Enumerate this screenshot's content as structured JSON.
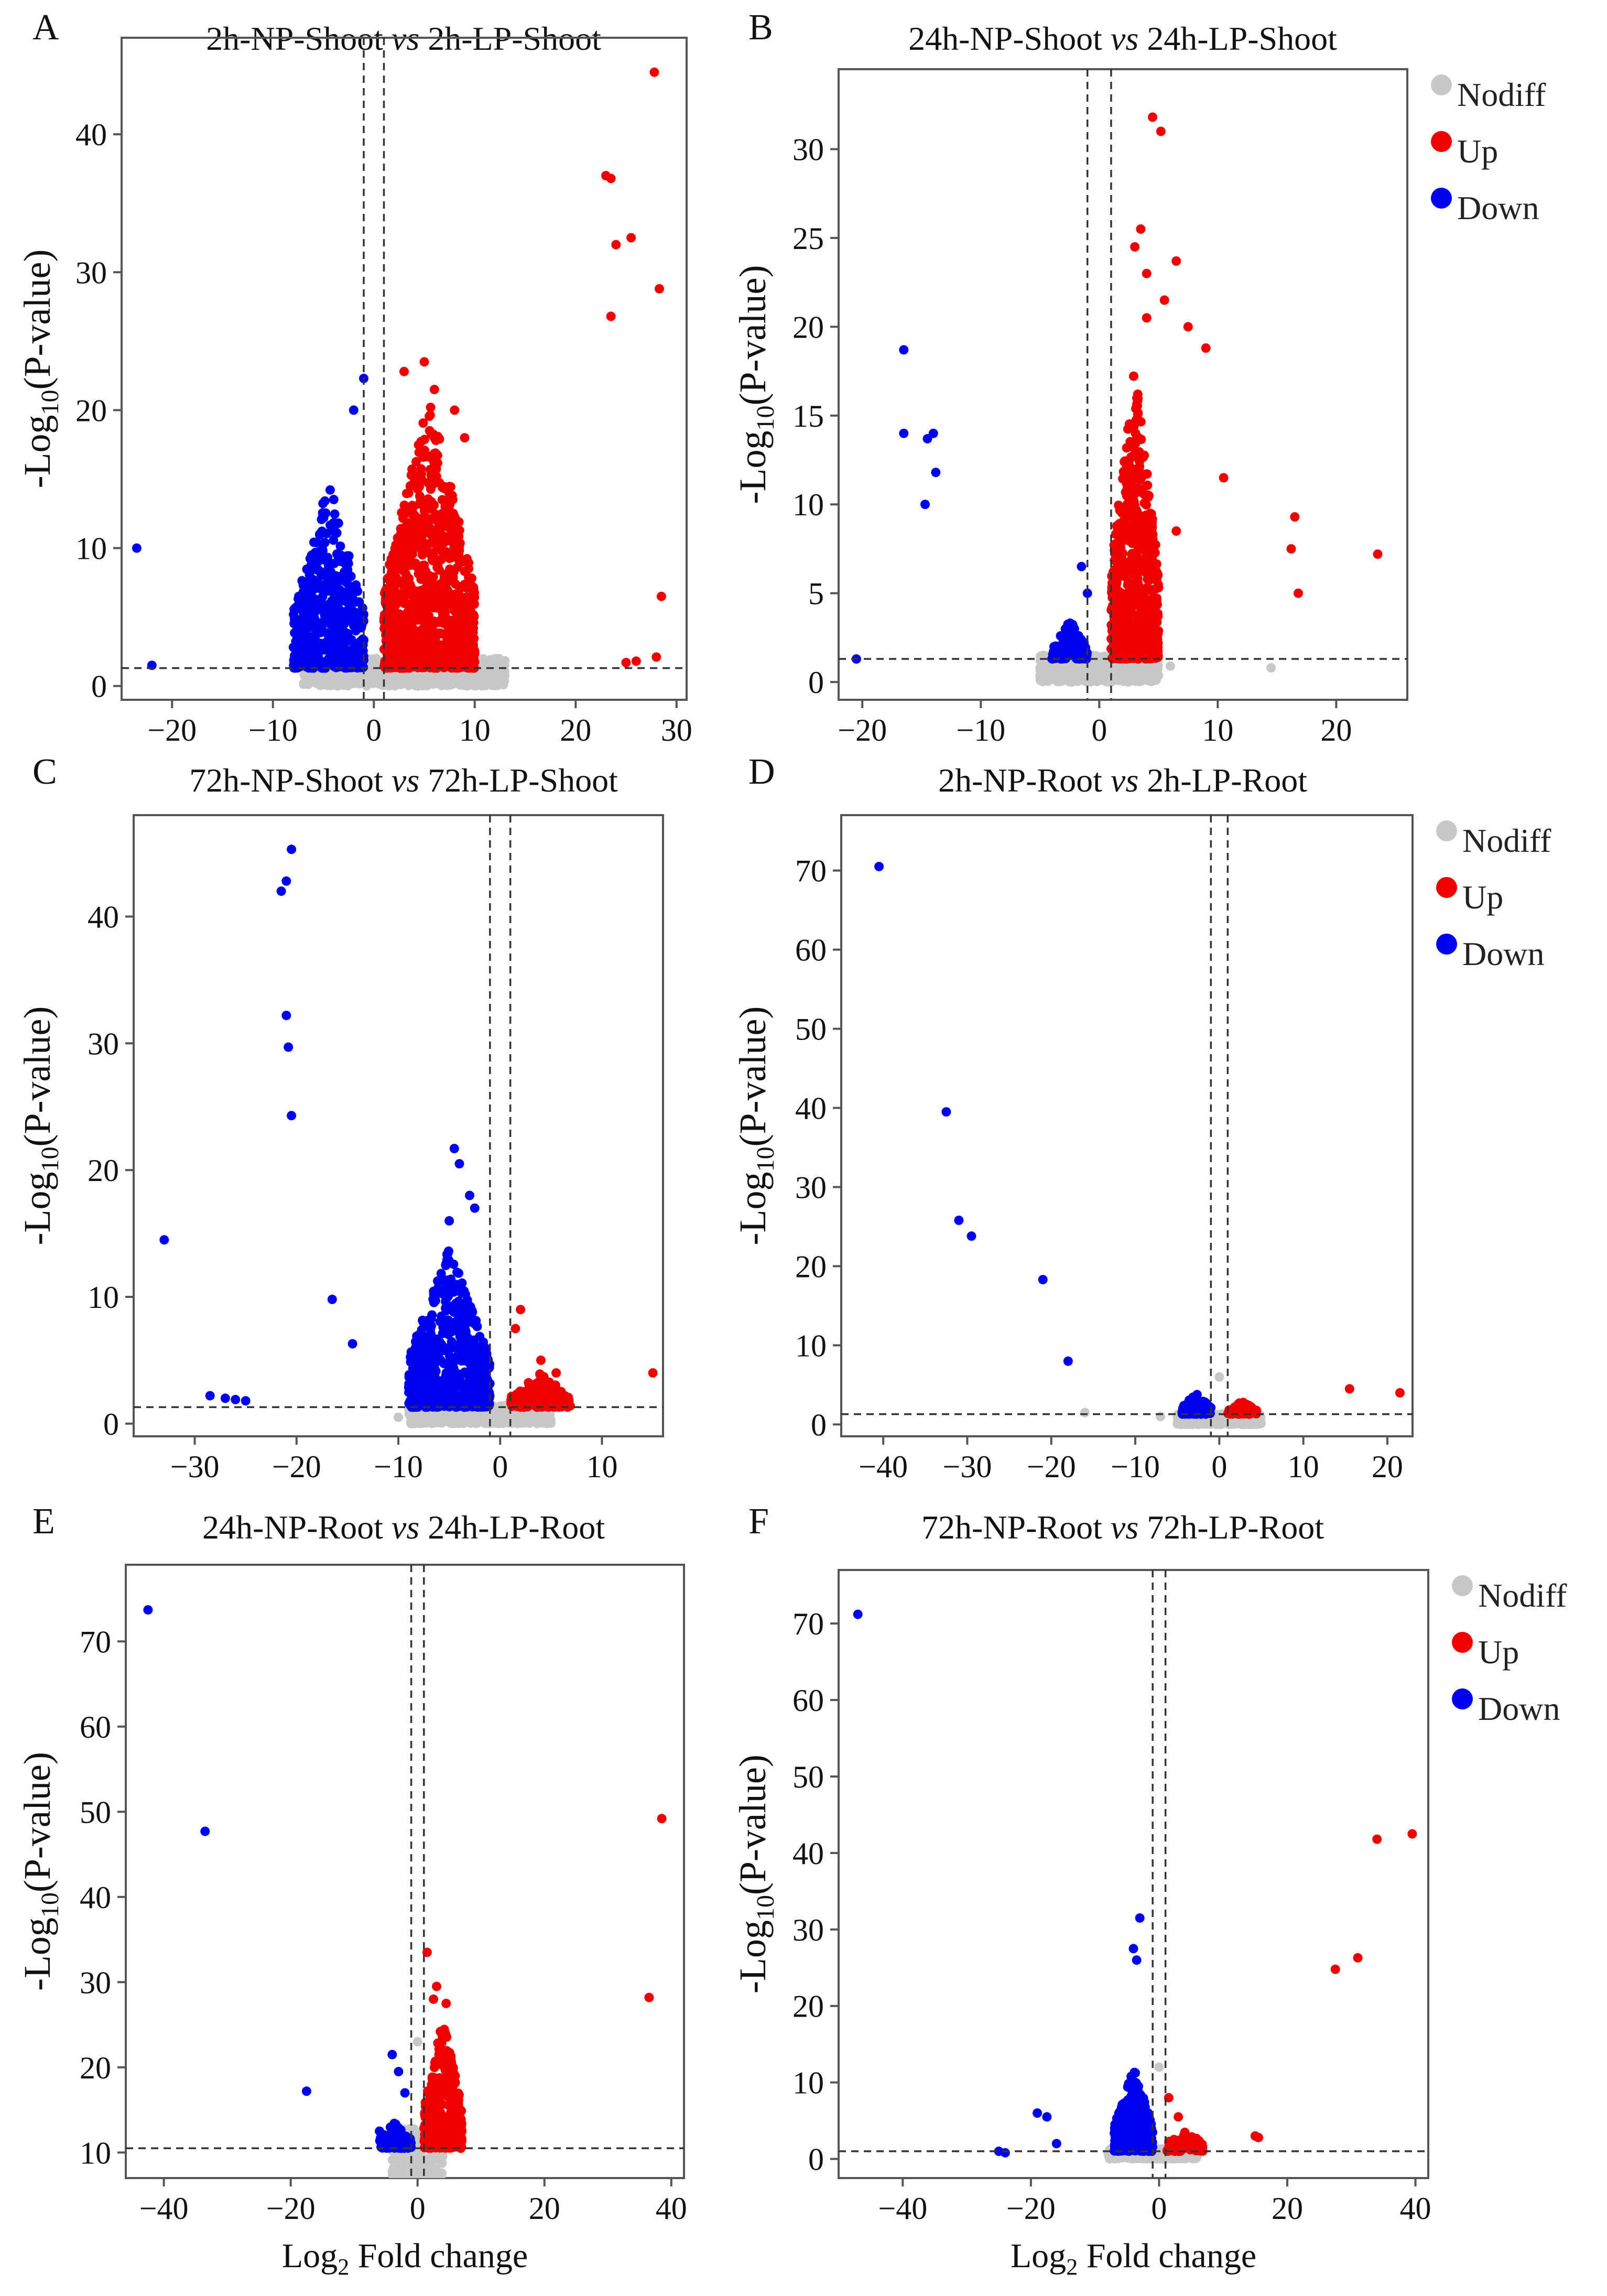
{
  "figure": {
    "ylabel_prefix": "-Log",
    "ylabel_sub": "10",
    "ylabel_suffix": "(P-value)",
    "xlabel_prefix": "Log",
    "xlabel_sub": "2",
    "xlabel_suffix": " Fold change"
  },
  "legend_items": [
    {
      "label": "Nodiff",
      "color": "#c8c8c8"
    },
    {
      "label": "Up",
      "color": "#f00000"
    },
    {
      "label": "Down",
      "color": "#0000f0"
    }
  ],
  "chart_data": [
    {
      "type": "scatter",
      "letter": "A",
      "title_left": "2h-NP-Shoot ",
      "title_vs": "vs",
      "title_right": " 2h-LP-Shoot",
      "xlim": [
        -25,
        31
      ],
      "ylim": [
        -1,
        47
      ],
      "xticks": [
        -20,
        -10,
        0,
        10,
        20,
        30
      ],
      "yticks": [
        0,
        10,
        20,
        30,
        40
      ],
      "fc_threshold": [
        -1,
        1
      ],
      "p_threshold": 1.3,
      "legend": false,
      "xlabel_shown": false,
      "clouds": [
        {
          "category": "Nodiff",
          "x_range": [
            -7,
            13
          ],
          "y_max": 2,
          "n": 900
        },
        {
          "category": "Down",
          "x_range": [
            -8,
            -1
          ],
          "y_max": 15,
          "n": 500
        },
        {
          "category": "Up",
          "x_range": [
            1,
            10
          ],
          "y_max": 21,
          "n": 1000
        }
      ],
      "points": [
        {
          "x": -23.5,
          "y": 10,
          "category": "Down"
        },
        {
          "x": -22,
          "y": 1.5,
          "category": "Down"
        },
        {
          "x": -1,
          "y": 22.3,
          "category": "Down"
        },
        {
          "x": -2,
          "y": 20,
          "category": "Down"
        },
        {
          "x": 5,
          "y": 23.5,
          "category": "Up"
        },
        {
          "x": 3,
          "y": 22.8,
          "category": "Up"
        },
        {
          "x": 6,
          "y": 21.5,
          "category": "Up"
        },
        {
          "x": 8,
          "y": 20,
          "category": "Up"
        },
        {
          "x": 9,
          "y": 18,
          "category": "Up"
        },
        {
          "x": 27.8,
          "y": 44.5,
          "category": "Up"
        },
        {
          "x": 23,
          "y": 37,
          "category": "Up"
        },
        {
          "x": 23.5,
          "y": 36.8,
          "category": "Up"
        },
        {
          "x": 25.5,
          "y": 32.5,
          "category": "Up"
        },
        {
          "x": 24,
          "y": 32,
          "category": "Up"
        },
        {
          "x": 28.3,
          "y": 28.8,
          "category": "Up"
        },
        {
          "x": 23.5,
          "y": 26.8,
          "category": "Up"
        },
        {
          "x": 28.5,
          "y": 6.5,
          "category": "Up"
        },
        {
          "x": 25,
          "y": 1.7,
          "category": "Up"
        },
        {
          "x": 26,
          "y": 1.8,
          "category": "Up"
        },
        {
          "x": 28,
          "y": 2.1,
          "category": "Up"
        }
      ]
    },
    {
      "type": "scatter",
      "letter": "B",
      "title_left": "24h-NP-Shoot ",
      "title_vs": "vs",
      "title_right": " 24h-LP-Shoot",
      "xlim": [
        -22,
        26
      ],
      "ylim": [
        -1,
        34.5
      ],
      "xticks": [
        -20,
        -10,
        0,
        10,
        20
      ],
      "yticks": [
        0,
        5,
        10,
        15,
        20,
        25,
        30
      ],
      "fc_threshold": [
        -1,
        1
      ],
      "p_threshold": 1.3,
      "legend": true,
      "xlabel_shown": false,
      "clouds": [
        {
          "category": "Nodiff",
          "x_range": [
            -5,
            5
          ],
          "y_max": 1.5,
          "n": 800
        },
        {
          "category": "Down",
          "x_range": [
            -4,
            -1
          ],
          "y_max": 3.5,
          "n": 120
        },
        {
          "category": "Up",
          "x_range": [
            1,
            5
          ],
          "y_max": 18,
          "n": 700
        }
      ],
      "points": [
        {
          "x": -20.5,
          "y": 1.3,
          "category": "Down"
        },
        {
          "x": -16.5,
          "y": 18.7,
          "category": "Down"
        },
        {
          "x": -16.5,
          "y": 14,
          "category": "Down"
        },
        {
          "x": -14.5,
          "y": 13.7,
          "category": "Down"
        },
        {
          "x": -14,
          "y": 14,
          "category": "Down"
        },
        {
          "x": -13.8,
          "y": 11.8,
          "category": "Down"
        },
        {
          "x": -14.7,
          "y": 10,
          "category": "Down"
        },
        {
          "x": -1.5,
          "y": 6.5,
          "category": "Down"
        },
        {
          "x": -1,
          "y": 5,
          "category": "Down"
        },
        {
          "x": 4.5,
          "y": 31.8,
          "category": "Up"
        },
        {
          "x": 5.2,
          "y": 31,
          "category": "Up"
        },
        {
          "x": 3.5,
          "y": 25.5,
          "category": "Up"
        },
        {
          "x": 3,
          "y": 24.5,
          "category": "Up"
        },
        {
          "x": 4,
          "y": 23,
          "category": "Up"
        },
        {
          "x": 6.5,
          "y": 23.7,
          "category": "Up"
        },
        {
          "x": 5.5,
          "y": 21.5,
          "category": "Up"
        },
        {
          "x": 7.5,
          "y": 20,
          "category": "Up"
        },
        {
          "x": 9,
          "y": 18.8,
          "category": "Up"
        },
        {
          "x": 4,
          "y": 20.5,
          "category": "Up"
        },
        {
          "x": 10.5,
          "y": 11.5,
          "category": "Up"
        },
        {
          "x": 16.5,
          "y": 9.3,
          "category": "Up"
        },
        {
          "x": 16.2,
          "y": 7.5,
          "category": "Up"
        },
        {
          "x": 16.8,
          "y": 5,
          "category": "Up"
        },
        {
          "x": 23.5,
          "y": 7.2,
          "category": "Up"
        },
        {
          "x": 6.5,
          "y": 8.5,
          "category": "Up"
        },
        {
          "x": 14.5,
          "y": 0.8,
          "category": "Nodiff"
        },
        {
          "x": -5,
          "y": 0.8,
          "category": "Nodiff"
        },
        {
          "x": 6,
          "y": 0.9,
          "category": "Nodiff"
        }
      ]
    },
    {
      "type": "scatter",
      "letter": "C",
      "title_left": "72h-NP-Shoot ",
      "title_vs": "vs",
      "title_right": " 72h-LP-Shoot",
      "xlim": [
        -36,
        16
      ],
      "ylim": [
        -1,
        48
      ],
      "xticks": [
        -30,
        -20,
        -10,
        0,
        10
      ],
      "yticks": [
        0,
        10,
        20,
        30,
        40
      ],
      "fc_threshold": [
        -1,
        1
      ],
      "p_threshold": 1.3,
      "legend": false,
      "xlabel_shown": false,
      "clouds": [
        {
          "category": "Nodiff",
          "x_range": [
            -9,
            5
          ],
          "y_max": 1.5,
          "n": 800
        },
        {
          "category": "Down",
          "x_range": [
            -9,
            -1
          ],
          "y_max": 14,
          "n": 650
        },
        {
          "category": "Up",
          "x_range": [
            1,
            7
          ],
          "y_max": 4,
          "n": 120
        }
      ],
      "points": [
        {
          "x": -20.5,
          "y": 45.3,
          "category": "Down"
        },
        {
          "x": -21.5,
          "y": 42,
          "category": "Down"
        },
        {
          "x": -21,
          "y": 42.8,
          "category": "Down"
        },
        {
          "x": -21,
          "y": 32.2,
          "category": "Down"
        },
        {
          "x": -20.8,
          "y": 29.7,
          "category": "Down"
        },
        {
          "x": -20.5,
          "y": 24.3,
          "category": "Down"
        },
        {
          "x": -33,
          "y": 14.5,
          "category": "Down"
        },
        {
          "x": -16.5,
          "y": 9.8,
          "category": "Down"
        },
        {
          "x": -14.5,
          "y": 6.3,
          "category": "Down"
        },
        {
          "x": -28.5,
          "y": 2.2,
          "category": "Down"
        },
        {
          "x": -27,
          "y": 2,
          "category": "Down"
        },
        {
          "x": -26,
          "y": 1.9,
          "category": "Down"
        },
        {
          "x": -25,
          "y": 1.8,
          "category": "Down"
        },
        {
          "x": -4.5,
          "y": 21.7,
          "category": "Down"
        },
        {
          "x": -4,
          "y": 20.5,
          "category": "Down"
        },
        {
          "x": -3,
          "y": 18,
          "category": "Down"
        },
        {
          "x": -2.5,
          "y": 17,
          "category": "Down"
        },
        {
          "x": -5,
          "y": 16,
          "category": "Down"
        },
        {
          "x": 15,
          "y": 4,
          "category": "Up"
        },
        {
          "x": 1.5,
          "y": 7.5,
          "category": "Up"
        },
        {
          "x": 2,
          "y": 9,
          "category": "Up"
        },
        {
          "x": 5.5,
          "y": 4,
          "category": "Up"
        },
        {
          "x": 4,
          "y": 5,
          "category": "Up"
        },
        {
          "x": -10,
          "y": 0.5,
          "category": "Nodiff"
        }
      ]
    },
    {
      "type": "scatter",
      "letter": "D",
      "title_left": "2h-NP-Root ",
      "title_vs": "vs",
      "title_right": " 2h-LP-Root",
      "xlim": [
        -45,
        23
      ],
      "ylim": [
        -1.5,
        77
      ],
      "xticks": [
        -40,
        -30,
        -20,
        -10,
        0,
        10,
        20
      ],
      "yticks": [
        0,
        10,
        20,
        30,
        40,
        50,
        60,
        70
      ],
      "fc_threshold": [
        -1,
        1
      ],
      "p_threshold": 1.3,
      "legend": true,
      "xlabel_shown": false,
      "clouds": [
        {
          "category": "Nodiff",
          "x_range": [
            -5,
            5
          ],
          "y_max": 1.3,
          "n": 500
        },
        {
          "category": "Down",
          "x_range": [
            -4.5,
            -1
          ],
          "y_max": 4,
          "n": 90
        },
        {
          "category": "Up",
          "x_range": [
            1,
            4.5
          ],
          "y_max": 3,
          "n": 70
        }
      ],
      "points": [
        {
          "x": -40.5,
          "y": 70.5,
          "category": "Down"
        },
        {
          "x": -32.5,
          "y": 39.5,
          "category": "Down"
        },
        {
          "x": -31,
          "y": 25.8,
          "category": "Down"
        },
        {
          "x": -29.5,
          "y": 23.8,
          "category": "Down"
        },
        {
          "x": -21,
          "y": 18.3,
          "category": "Down"
        },
        {
          "x": -18,
          "y": 8,
          "category": "Down"
        },
        {
          "x": 15.5,
          "y": 4.5,
          "category": "Up"
        },
        {
          "x": 21.5,
          "y": 4,
          "category": "Up"
        },
        {
          "x": -16,
          "y": 1.5,
          "category": "Nodiff"
        },
        {
          "x": 0,
          "y": 6,
          "category": "Nodiff"
        },
        {
          "x": -7,
          "y": 1,
          "category": "Nodiff"
        }
      ]
    },
    {
      "type": "scatter",
      "letter": "E",
      "title_left": "24h-NP-Root ",
      "title_vs": "vs",
      "title_right": " 24h-LP-Root",
      "xlim": [
        -46,
        42
      ],
      "ylim": [
        7,
        79
      ],
      "xticks": [
        -40,
        -20,
        0,
        20,
        40
      ],
      "yticks": [
        10,
        20,
        30,
        40,
        50,
        60,
        70
      ],
      "fc_threshold": [
        -1,
        1
      ],
      "p_threshold": 10.5,
      "legend": false,
      "xlabel_shown": true,
      "clouds": [
        {
          "category": "Nodiff",
          "x_range": [
            -4,
            4
          ],
          "y_max": 13,
          "n": 400
        },
        {
          "category": "Down",
          "x_range": [
            -6,
            -1
          ],
          "y_max": 14,
          "n": 70
        },
        {
          "category": "Up",
          "x_range": [
            1,
            7
          ],
          "y_max": 26,
          "n": 450
        }
      ],
      "points": [
        {
          "x": -42.5,
          "y": 73.7,
          "category": "Down"
        },
        {
          "x": -33.5,
          "y": 47.7,
          "category": "Down"
        },
        {
          "x": -17.5,
          "y": 17.2,
          "category": "Down"
        },
        {
          "x": -4,
          "y": 21.5,
          "category": "Down"
        },
        {
          "x": -3,
          "y": 19.5,
          "category": "Down"
        },
        {
          "x": -6,
          "y": 12.5,
          "category": "Down"
        },
        {
          "x": -2,
          "y": 17,
          "category": "Down"
        },
        {
          "x": 38.5,
          "y": 49.2,
          "category": "Up"
        },
        {
          "x": 36.5,
          "y": 28.2,
          "category": "Up"
        },
        {
          "x": 1.5,
          "y": 33.5,
          "category": "Up"
        },
        {
          "x": 3,
          "y": 29.5,
          "category": "Up"
        },
        {
          "x": 4.5,
          "y": 27.5,
          "category": "Up"
        },
        {
          "x": 2.5,
          "y": 28,
          "category": "Up"
        },
        {
          "x": 0,
          "y": 23,
          "category": "Nodiff"
        }
      ]
    },
    {
      "type": "scatter",
      "letter": "F",
      "title_left": "72h-NP-Root ",
      "title_vs": "vs",
      "title_right": " 72h-LP-Root",
      "xlim": [
        -50,
        42
      ],
      "ylim": [
        -2.5,
        77
      ],
      "xticks": [
        -40,
        -20,
        0,
        20,
        40
      ],
      "yticks": [
        0,
        10,
        20,
        30,
        40,
        50,
        60,
        70
      ],
      "fc_threshold": [
        -1,
        1
      ],
      "p_threshold": 1,
      "legend": true,
      "xlabel_shown": true,
      "clouds": [
        {
          "category": "Nodiff",
          "x_range": [
            -8,
            6
          ],
          "y_max": 1.3,
          "n": 550
        },
        {
          "category": "Down",
          "x_range": [
            -7,
            -1
          ],
          "y_max": 12,
          "n": 350
        },
        {
          "category": "Up",
          "x_range": [
            1,
            7
          ],
          "y_max": 4,
          "n": 90
        }
      ],
      "points": [
        {
          "x": -47,
          "y": 71.2,
          "category": "Down"
        },
        {
          "x": -3,
          "y": 31.5,
          "category": "Down"
        },
        {
          "x": -4,
          "y": 27.5,
          "category": "Down"
        },
        {
          "x": -3.5,
          "y": 26,
          "category": "Down"
        },
        {
          "x": -19,
          "y": 6,
          "category": "Down"
        },
        {
          "x": -17.5,
          "y": 5.5,
          "category": "Down"
        },
        {
          "x": -16,
          "y": 2,
          "category": "Down"
        },
        {
          "x": -25,
          "y": 1,
          "category": "Down"
        },
        {
          "x": -24,
          "y": 0.8,
          "category": "Down"
        },
        {
          "x": 39.5,
          "y": 42.5,
          "category": "Up"
        },
        {
          "x": 34,
          "y": 41.8,
          "category": "Up"
        },
        {
          "x": 31,
          "y": 26.3,
          "category": "Up"
        },
        {
          "x": 27.5,
          "y": 24.8,
          "category": "Up"
        },
        {
          "x": 15,
          "y": 3,
          "category": "Up"
        },
        {
          "x": 15.5,
          "y": 2.8,
          "category": "Up"
        },
        {
          "x": 1.5,
          "y": 8,
          "category": "Up"
        },
        {
          "x": 3,
          "y": 5.5,
          "category": "Up"
        },
        {
          "x": 0,
          "y": 12,
          "category": "Nodiff"
        }
      ]
    }
  ]
}
